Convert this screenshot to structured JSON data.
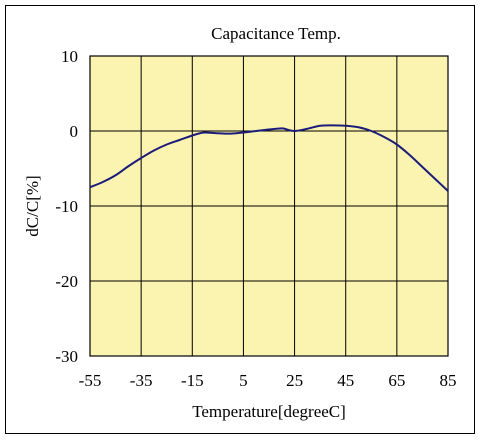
{
  "chart_data": {
    "type": "line",
    "title": "Capacitance Temp.",
    "xlabel": "Temperature[degreeC]",
    "ylabel": "dC/C[%]",
    "xlim": [
      -55,
      85
    ],
    "ylim": [
      -30,
      10
    ],
    "xticks": [
      "-55",
      "-35",
      "-15",
      "5",
      "25",
      "45",
      "65",
      "85"
    ],
    "yticks": [
      "10",
      "0",
      "-10",
      "-20",
      "-30"
    ],
    "grid": true,
    "colors": {
      "plot_background": "#fbf3b0",
      "line": "#1c1c7a",
      "grid": "#000000"
    },
    "series": [
      {
        "x": [
          -55,
          -50,
          -45,
          -40,
          -35,
          -30,
          -25,
          -20,
          -15,
          -12,
          -10,
          -5,
          0,
          5,
          10,
          15,
          20,
          22,
          25,
          30,
          35,
          40,
          45,
          50,
          55,
          60,
          65,
          70,
          75,
          80,
          85
        ],
        "y": [
          -7.5,
          -6.8,
          -5.9,
          -4.7,
          -3.6,
          -2.6,
          -1.8,
          -1.2,
          -0.6,
          -0.3,
          -0.2,
          -0.3,
          -0.35,
          -0.2,
          0.0,
          0.2,
          0.35,
          0.2,
          0.0,
          0.3,
          0.7,
          0.75,
          0.7,
          0.5,
          0.0,
          -0.8,
          -1.8,
          -3.2,
          -4.8,
          -6.4,
          -8.0
        ]
      }
    ]
  }
}
